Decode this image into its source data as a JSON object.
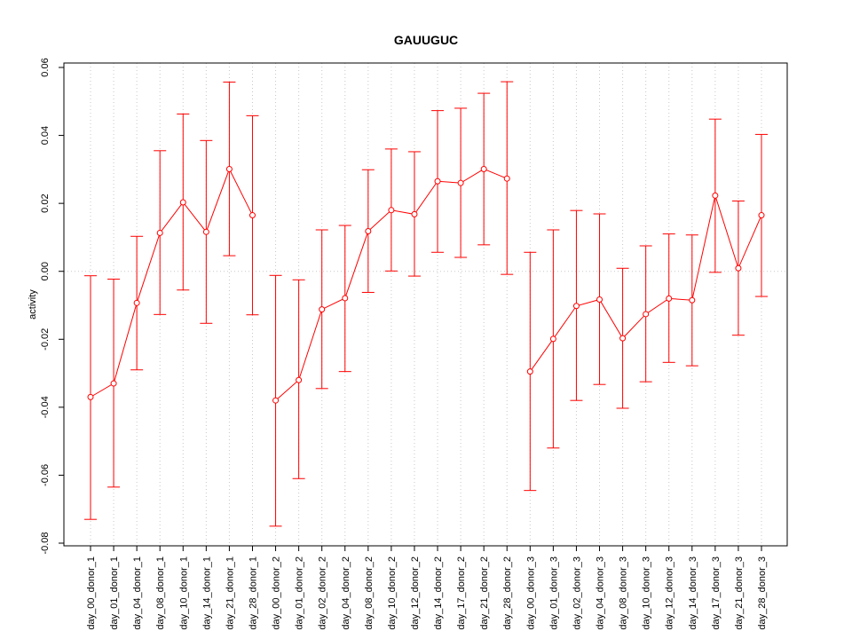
{
  "chart_data": {
    "type": "line",
    "title": "GAUUGUC",
    "xlabel": "",
    "ylabel": "activity",
    "ylim": [
      -0.08,
      0.06
    ],
    "yticks": [
      "-0.08",
      "-0.06",
      "-0.04",
      "-0.02",
      "0.00",
      "0.02",
      "0.04",
      "0.06"
    ],
    "grid": true,
    "reference_line": 0,
    "colors": {
      "series": "#ff0000",
      "grid": "#c8c8c8",
      "axis": "#000000"
    },
    "categories": [
      "day_00_donor_1",
      "day_01_donor_1",
      "day_04_donor_1",
      "day_08_donor_1",
      "day_10_donor_1",
      "day_14_donor_1",
      "day_21_donor_1",
      "day_28_donor_1",
      "day_00_donor_2",
      "day_01_donor_2",
      "day_02_donor_2",
      "day_04_donor_2",
      "day_08_donor_2",
      "day_10_donor_2",
      "day_12_donor_2",
      "day_14_donor_2",
      "day_17_donor_2",
      "day_21_donor_2",
      "day_28_donor_2",
      "day_00_donor_3",
      "day_01_donor_3",
      "day_02_donor_3",
      "day_04_donor_3",
      "day_08_donor_3",
      "day_10_donor_3",
      "day_12_donor_3",
      "day_14_donor_3",
      "day_17_donor_3",
      "day_21_donor_3",
      "day_28_donor_3"
    ],
    "series": [
      {
        "values": [
          -0.037,
          -0.033,
          -0.0093,
          0.0113,
          0.0203,
          0.0116,
          0.0301,
          0.0165,
          -0.038,
          -0.032,
          -0.0112,
          -0.0079,
          0.0118,
          0.018,
          0.0168,
          0.0265,
          0.026,
          0.0301,
          0.0273,
          -0.0295,
          -0.0199,
          -0.0102,
          -0.0083,
          -0.0197,
          -0.0126,
          -0.008,
          -0.0085,
          0.0223,
          0.0009,
          0.0165
        ],
        "error_lower": [
          -0.073,
          -0.0635,
          -0.029,
          -0.0127,
          -0.0055,
          -0.0153,
          0.0046,
          -0.0128,
          -0.075,
          -0.061,
          -0.0345,
          -0.0295,
          -0.0062,
          0.0001,
          -0.0014,
          0.0056,
          0.0041,
          0.0078,
          -0.0009,
          -0.0645,
          -0.052,
          -0.038,
          -0.0333,
          -0.0403,
          -0.0325,
          -0.0268,
          -0.0278,
          -0.0003,
          -0.0188,
          -0.0074
        ],
        "error_upper": [
          -0.0013,
          -0.0023,
          0.0103,
          0.0355,
          0.0463,
          0.0385,
          0.0557,
          0.0458,
          -0.0012,
          -0.0025,
          0.0122,
          0.0135,
          0.0299,
          0.036,
          0.0352,
          0.0473,
          0.048,
          0.0524,
          0.0558,
          0.0056,
          0.0122,
          0.0179,
          0.0169,
          0.0009,
          0.0075,
          0.011,
          0.0107,
          0.0448,
          0.0207,
          0.0403
        ]
      }
    ]
  }
}
